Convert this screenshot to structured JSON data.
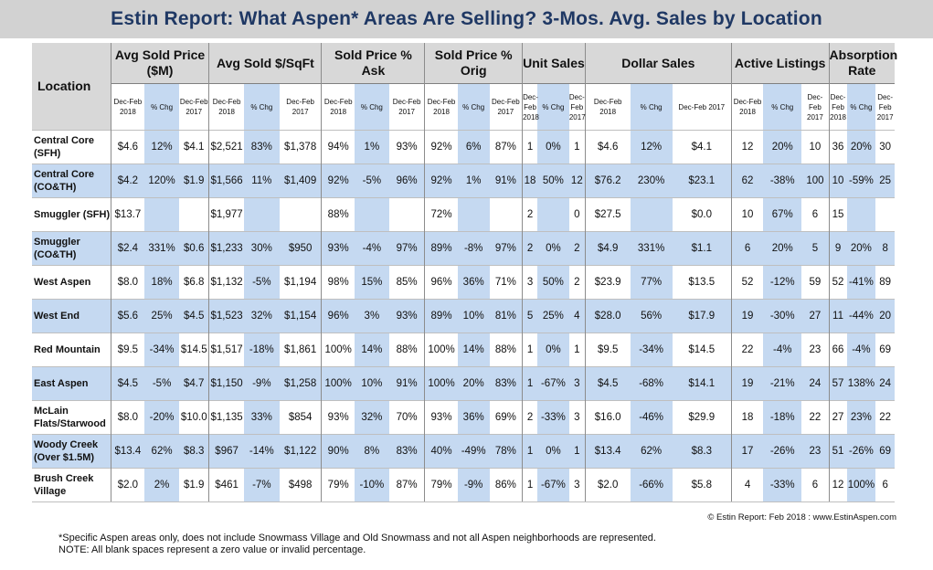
{
  "title": "Estin Report: What Aspen* Areas Are Selling? 3-Mos. Avg. Sales by Location",
  "columns": {
    "location": "Location",
    "groups": [
      "Avg Sold Price ($M)",
      "Avg Sold $/SqFt",
      "Sold Price % Ask",
      "Sold Price % Orig",
      "Unit Sales",
      "Dollar Sales",
      "Active Listings",
      "Absorption Rate"
    ],
    "sub": [
      "Dec-Feb 2018",
      "% Chg",
      "Dec-Feb 2017"
    ]
  },
  "rows": [
    {
      "location": "Central Core (SFH)",
      "cells": [
        "$4.6",
        "12%",
        "$4.1",
        "$2,521",
        "83%",
        "$1,378",
        "94%",
        "1%",
        "93%",
        "92%",
        "6%",
        "87%",
        "1",
        "0%",
        "1",
        "$4.6",
        "12%",
        "$4.1",
        "12",
        "20%",
        "10",
        "36",
        "20%",
        "30"
      ]
    },
    {
      "location": "Central Core (CO&TH)",
      "cells": [
        "$4.2",
        "120%",
        "$1.9",
        "$1,566",
        "11%",
        "$1,409",
        "92%",
        "-5%",
        "96%",
        "92%",
        "1%",
        "91%",
        "18",
        "50%",
        "12",
        "$76.2",
        "230%",
        "$23.1",
        "62",
        "-38%",
        "100",
        "10",
        "-59%",
        "25"
      ]
    },
    {
      "location": "Smuggler (SFH)",
      "cells": [
        "$13.7",
        "",
        "",
        "$1,977",
        "",
        "",
        "88%",
        "",
        "",
        "72%",
        "",
        "",
        "2",
        "",
        "0",
        "$27.5",
        "",
        "$0.0",
        "10",
        "67%",
        "6",
        "15",
        "",
        ""
      ]
    },
    {
      "location": "Smuggler (CO&TH)",
      "cells": [
        "$2.4",
        "331%",
        "$0.6",
        "$1,233",
        "30%",
        "$950",
        "93%",
        "-4%",
        "97%",
        "89%",
        "-8%",
        "97%",
        "2",
        "0%",
        "2",
        "$4.9",
        "331%",
        "$1.1",
        "6",
        "20%",
        "5",
        "9",
        "20%",
        "8"
      ]
    },
    {
      "location": "West Aspen",
      "cells": [
        "$8.0",
        "18%",
        "$6.8",
        "$1,132",
        "-5%",
        "$1,194",
        "98%",
        "15%",
        "85%",
        "96%",
        "36%",
        "71%",
        "3",
        "50%",
        "2",
        "$23.9",
        "77%",
        "$13.5",
        "52",
        "-12%",
        "59",
        "52",
        "-41%",
        "89"
      ]
    },
    {
      "location": "West End",
      "cells": [
        "$5.6",
        "25%",
        "$4.5",
        "$1,523",
        "32%",
        "$1,154",
        "96%",
        "3%",
        "93%",
        "89%",
        "10%",
        "81%",
        "5",
        "25%",
        "4",
        "$28.0",
        "56%",
        "$17.9",
        "19",
        "-30%",
        "27",
        "11",
        "-44%",
        "20"
      ]
    },
    {
      "location": "Red Mountain",
      "cells": [
        "$9.5",
        "-34%",
        "$14.5",
        "$1,517",
        "-18%",
        "$1,861",
        "100%",
        "14%",
        "88%",
        "100%",
        "14%",
        "88%",
        "1",
        "0%",
        "1",
        "$9.5",
        "-34%",
        "$14.5",
        "22",
        "-4%",
        "23",
        "66",
        "-4%",
        "69"
      ]
    },
    {
      "location": "East Aspen",
      "cells": [
        "$4.5",
        "-5%",
        "$4.7",
        "$1,150",
        "-9%",
        "$1,258",
        "100%",
        "10%",
        "91%",
        "100%",
        "20%",
        "83%",
        "1",
        "-67%",
        "3",
        "$4.5",
        "-68%",
        "$14.1",
        "19",
        "-21%",
        "24",
        "57",
        "138%",
        "24"
      ]
    },
    {
      "location": "McLain Flats/Starwood",
      "cells": [
        "$8.0",
        "-20%",
        "$10.0",
        "$1,135",
        "33%",
        "$854",
        "93%",
        "32%",
        "70%",
        "93%",
        "36%",
        "69%",
        "2",
        "-33%",
        "3",
        "$16.0",
        "-46%",
        "$29.9",
        "18",
        "-18%",
        "22",
        "27",
        "23%",
        "22"
      ]
    },
    {
      "location": "Woody Creek (Over $1.5M)",
      "cells": [
        "$13.4",
        "62%",
        "$8.3",
        "$967",
        "-14%",
        "$1,122",
        "90%",
        "8%",
        "83%",
        "40%",
        "-49%",
        "78%",
        "1",
        "0%",
        "1",
        "$13.4",
        "62%",
        "$8.3",
        "17",
        "-26%",
        "23",
        "51",
        "-26%",
        "69"
      ]
    },
    {
      "location": "Brush Creek Village",
      "cells": [
        "$2.0",
        "2%",
        "$1.9",
        "$461",
        "-7%",
        "$498",
        "79%",
        "-10%",
        "87%",
        "79%",
        "-9%",
        "86%",
        "1",
        "-67%",
        "3",
        "$2.0",
        "-66%",
        "$5.8",
        "4",
        "-33%",
        "6",
        "12",
        "100%",
        "6"
      ]
    }
  ],
  "copyright": "© Estin Report: Feb 2018 : www.EstinAspen.com",
  "footnote1": "*Specific Aspen areas only, does not include Snowmass Village and Old Snowmass and not all Aspen neighborhoods are represented.",
  "footnote2": "NOTE: All blank spaces represent a zero value or invalid percentage."
}
